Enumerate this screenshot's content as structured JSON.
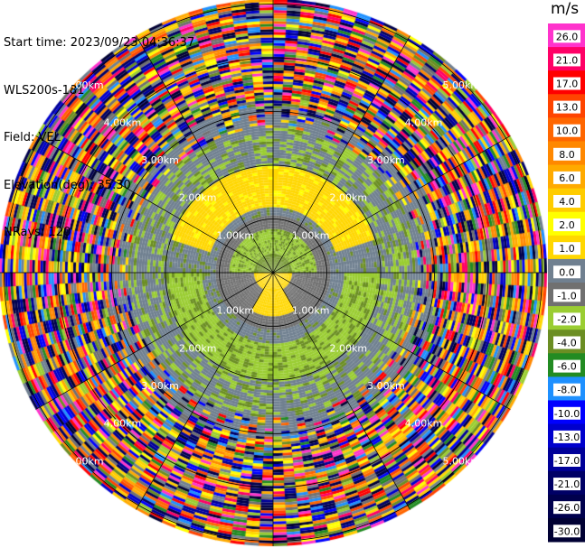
{
  "info": {
    "start_time": "Start time: 2023/09/23 04:36:37",
    "instrument": "WLS200s-181",
    "field": "Field: VEL",
    "elevation": "Elevation(deg): 35.30",
    "nrays": "NRays: 120"
  },
  "chart_data": {
    "type": "heatmap",
    "subtype": "radar-ppi",
    "range_rings": [
      "1.00km",
      "2.00km",
      "3.00km",
      "4.00km",
      "5.00km"
    ],
    "ring_values_km": [
      1,
      2,
      3,
      4,
      5
    ],
    "spoke_count": 12,
    "colorbar": {
      "unit": "m/s",
      "tick_labels": [
        "26.0",
        "21.0",
        "17.0",
        "13.0",
        "10.0",
        "8.0",
        "6.0",
        "4.0",
        "2.0",
        "1.0",
        "0.0",
        "-1.0",
        "-2.0",
        "-4.0",
        "-6.0",
        "-8.0",
        "-10.0",
        "-13.0",
        "-17.0",
        "-21.0",
        "-26.0",
        "-30.0"
      ],
      "colors": [
        "#ff33cc",
        "#ff0066",
        "#ff0000",
        "#ff4400",
        "#ff6600",
        "#ff8800",
        "#ffaa00",
        "#ffcc00",
        "#ffff00",
        "#ffd700",
        "#708090",
        "#707070",
        "#9acd32",
        "#6b8e23",
        "#228b22",
        "#1e90ff",
        "#0000ff",
        "#0000cd",
        "#000099",
        "#000066",
        "#00004d",
        "#000033"
      ]
    },
    "pattern": {
      "near_center": "green / yellow",
      "ring_1_to_2km": "gray with yellow band north and south",
      "ring_2_to_3km": "gray / yellow-green",
      "beyond_3km": "noise, mixed colors"
    }
  }
}
